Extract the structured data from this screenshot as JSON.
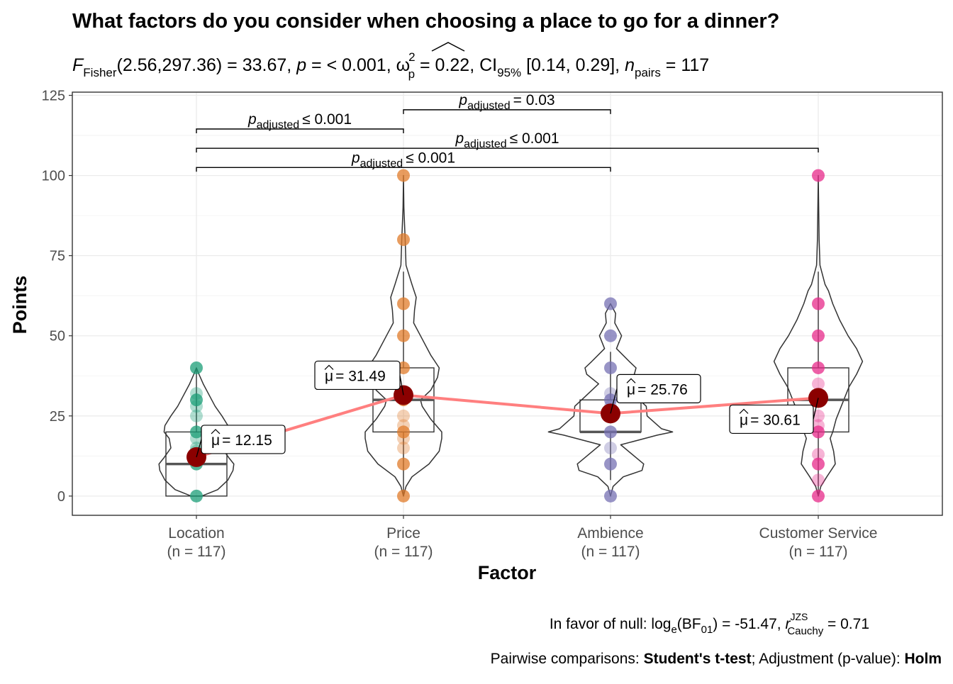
{
  "chart_data": {
    "type": "violin",
    "title": "What factors do you consider when choosing a place to go for a dinner?",
    "subtitle": {
      "stat": "F",
      "stat_sub": "Fisher",
      "df": "(2.56,297.36) = 33.67, ",
      "p": "p",
      "p_val": " = < 0.001, ",
      "omega": "ω",
      "omega_sup": "2",
      "omega_sub": "p",
      "omega_val": " = 0.22, CI",
      "ci_sub": "95%",
      "ci_val": " [0.14, 0.29], ",
      "n": "n",
      "n_sub": "pairs",
      "n_val": " = 117"
    },
    "xlabel": "Factor",
    "ylabel": "Points",
    "ylim": [
      -6,
      126
    ],
    "yticks": [
      0,
      25,
      50,
      75,
      100,
      125
    ],
    "grid": true,
    "categories": [
      "Location",
      "Price",
      "Ambience",
      "Customer Service"
    ],
    "n_labels": [
      "(n = 117)",
      "(n = 117)",
      "(n = 117)",
      "(n = 117)"
    ],
    "colors": [
      "#1B9E77",
      "#E07B2A",
      "#7570B3",
      "#E7298A"
    ],
    "means": [
      12.15,
      31.49,
      25.76,
      30.61
    ],
    "mean_labels": [
      "= 12.15",
      "= 31.49",
      "= 25.76",
      "= 30.61"
    ],
    "mean_symbol": "μ",
    "mean_color": "#8B0000",
    "mean_line_color": "#FF7F7F",
    "boxes": [
      {
        "q1": 0,
        "median": 10,
        "q3": 20
      },
      {
        "q1": 20,
        "median": 30,
        "q3": 40
      },
      {
        "q1": 20,
        "median": 20,
        "q3": 30
      },
      {
        "q1": 20,
        "median": 30,
        "q3": 40
      }
    ],
    "points": [
      [
        0,
        10,
        12,
        14,
        15,
        18,
        20,
        25,
        28,
        30,
        32,
        40
      ],
      [
        0,
        10,
        15,
        18,
        20,
        22,
        25,
        30,
        40,
        50,
        60,
        80,
        100
      ],
      [
        0,
        10,
        15,
        20,
        25,
        28,
        30,
        32,
        40,
        50,
        60
      ],
      [
        0,
        5,
        10,
        13,
        20,
        22,
        25,
        30,
        35,
        40,
        50,
        60,
        100
      ]
    ],
    "violins": [
      [
        [
          0,
          0.06
        ],
        [
          2,
          0.25
        ],
        [
          5,
          0.37
        ],
        [
          8,
          0.43
        ],
        [
          10,
          0.44
        ],
        [
          12,
          0.38
        ],
        [
          15,
          0.3
        ],
        [
          18,
          0.32
        ],
        [
          20,
          0.38
        ],
        [
          22,
          0.37
        ],
        [
          25,
          0.3
        ],
        [
          28,
          0.22
        ],
        [
          31,
          0.16
        ],
        [
          35,
          0.08
        ],
        [
          38,
          0.03
        ],
        [
          40,
          0.0
        ]
      ],
      [
        [
          0,
          0.0
        ],
        [
          3,
          0.03
        ],
        [
          6,
          0.1
        ],
        [
          10,
          0.3
        ],
        [
          14,
          0.42
        ],
        [
          18,
          0.45
        ],
        [
          20,
          0.45
        ],
        [
          24,
          0.32
        ],
        [
          28,
          0.22
        ],
        [
          30,
          0.2
        ],
        [
          33,
          0.32
        ],
        [
          37,
          0.4
        ],
        [
          40,
          0.42
        ],
        [
          44,
          0.32
        ],
        [
          50,
          0.2
        ],
        [
          54,
          0.12
        ],
        [
          58,
          0.13
        ],
        [
          62,
          0.15
        ],
        [
          66,
          0.1
        ],
        [
          72,
          0.03
        ],
        [
          80,
          0.02
        ],
        [
          90,
          0.005
        ],
        [
          100,
          0.0
        ]
      ],
      [
        [
          0,
          0.0
        ],
        [
          3,
          0.03
        ],
        [
          6,
          0.15
        ],
        [
          8,
          0.37
        ],
        [
          10,
          0.39
        ],
        [
          12,
          0.3
        ],
        [
          16,
          0.12
        ],
        [
          19,
          0.55
        ],
        [
          20,
          0.73
        ],
        [
          21,
          0.6
        ],
        [
          25,
          0.43
        ],
        [
          28,
          0.42
        ],
        [
          31,
          0.3
        ],
        [
          35,
          0.14
        ],
        [
          38,
          0.28
        ],
        [
          40,
          0.3
        ],
        [
          42,
          0.22
        ],
        [
          46,
          0.07
        ],
        [
          50,
          0.13
        ],
        [
          54,
          0.05
        ],
        [
          57,
          0.06
        ],
        [
          60,
          0.0
        ]
      ],
      [
        [
          0,
          0.0
        ],
        [
          3,
          0.03
        ],
        [
          6,
          0.1
        ],
        [
          10,
          0.2
        ],
        [
          14,
          0.18
        ],
        [
          18,
          0.14
        ],
        [
          20,
          0.17
        ],
        [
          24,
          0.21
        ],
        [
          30,
          0.3
        ],
        [
          34,
          0.36
        ],
        [
          38,
          0.45
        ],
        [
          42,
          0.52
        ],
        [
          46,
          0.45
        ],
        [
          50,
          0.35
        ],
        [
          55,
          0.25
        ],
        [
          60,
          0.17
        ],
        [
          64,
          0.12
        ],
        [
          66,
          0.08
        ],
        [
          72,
          0.02
        ],
        [
          80,
          0.01
        ],
        [
          100,
          0.0
        ]
      ]
    ],
    "comparisons": [
      {
        "from": 0,
        "to": 2,
        "y": 102.5,
        "text": "≤ 0.001"
      },
      {
        "from": 0,
        "to": 3,
        "y": 108.5,
        "text": "≤ 0.001"
      },
      {
        "from": 0,
        "to": 1,
        "y": 114.5,
        "text": "≤ 0.001"
      },
      {
        "from": 1,
        "to": 2,
        "y": 120.5,
        "text": "= 0.03"
      }
    ],
    "comparison_p": "p",
    "comparison_sub": "adjusted",
    "caption1": {
      "a": "In favor of null: log",
      "a_sub": "e",
      "b": "(BF",
      "b_sub": "01",
      "c": ") = -51.47, ",
      "r": "r",
      "r_sup": "JZS",
      "r_sub": "Cauchy",
      "d": " = 0.71"
    },
    "caption2": {
      "a": "Pairwise comparisons: ",
      "b": "Student's t-test",
      "c": "; Adjustment (p-value): ",
      "d": "Holm"
    }
  }
}
